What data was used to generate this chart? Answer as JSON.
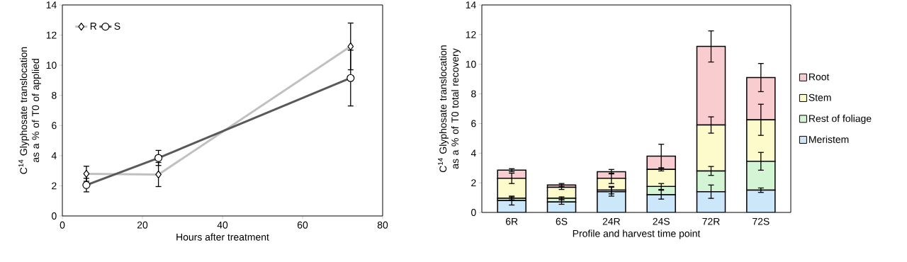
{
  "chart_data": [
    {
      "type": "line",
      "xlabel": "Hours after treatment",
      "ylabel": "C$^{14}$ Glyphosate translocation as a % of T0 of applied",
      "xlim": [
        0,
        80
      ],
      "ylim": [
        0,
        14
      ],
      "xticks": [
        0,
        20,
        40,
        60,
        80
      ],
      "yticks": [
        0,
        2,
        4,
        6,
        8,
        10,
        12,
        14
      ],
      "legend": "top left",
      "series": [
        {
          "name": "R",
          "color": "#c0c0c0",
          "marker": "diamond",
          "x": [
            6,
            24,
            72
          ],
          "values": [
            2.8,
            2.75,
            11.25
          ],
          "errors": [
            0.5,
            0.8,
            1.55
          ]
        },
        {
          "name": "S",
          "color": "#595959",
          "marker": "circle",
          "x": [
            6,
            24,
            72
          ],
          "values": [
            2.05,
            3.85,
            9.15
          ],
          "errors": [
            0.45,
            0.5,
            1.85
          ]
        }
      ]
    },
    {
      "type": "bar",
      "stacked": true,
      "xlabel": "Profile and harvest time point",
      "ylabel": "C$^{14}$ Glyphosate translocation as a % of T0 total recovery",
      "categories": [
        "6R",
        "6S",
        "24R",
        "24S",
        "72R",
        "72S"
      ],
      "ylim": [
        0,
        14
      ],
      "yticks": [
        0,
        2,
        4,
        6,
        8,
        10,
        12,
        14
      ],
      "legend": "right",
      "series": [
        {
          "name": "Meristem",
          "color": "#cce6fa",
          "values": [
            0.8,
            0.7,
            1.4,
            1.2,
            1.4,
            1.5
          ],
          "errors": [
            0.3,
            0.15,
            0.3,
            0.3,
            0.45,
            0.15
          ]
        },
        {
          "name": "Rest of foliage",
          "color": "#d4f5d4",
          "values": [
            0.15,
            0.25,
            0.1,
            0.55,
            1.4,
            1.95
          ],
          "errors": [
            0.1,
            0.1,
            0.25,
            0.2,
            0.3,
            0.6
          ]
        },
        {
          "name": "Stem",
          "color": "#fdfacc",
          "values": [
            1.35,
            0.75,
            0.8,
            1.15,
            3.1,
            2.8
          ],
          "errors": [
            0.35,
            0.15,
            0.35,
            0.1,
            0.55,
            1.05
          ]
        },
        {
          "name": "Root",
          "color": "#f9cdd0",
          "values": [
            0.55,
            0.15,
            0.45,
            0.9,
            5.3,
            2.85
          ],
          "errors": [
            0.1,
            0.1,
            0.15,
            0.8,
            1.05,
            0.95
          ]
        }
      ]
    }
  ]
}
